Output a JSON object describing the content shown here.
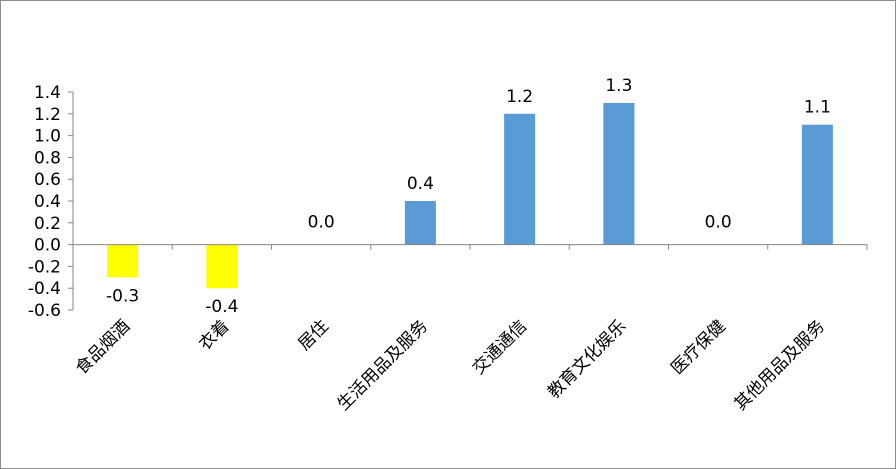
{
  "chart_data": {
    "type": "bar",
    "title": "",
    "xlabel": "",
    "ylabel": "",
    "categories": [
      "食品烟酒",
      "衣着",
      "居住",
      "生活用品及服务",
      "交通通信",
      "教育文化娱乐",
      "医疗保健",
      "其他用品及服务"
    ],
    "values": [
      -0.3,
      -0.4,
      0.0,
      0.4,
      1.2,
      1.3,
      0.0,
      1.1
    ],
    "value_labels": [
      "-0.3",
      "-0.4",
      "0.0",
      "0.4",
      "1.2",
      "1.3",
      "0.0",
      "1.1"
    ],
    "ylim": [
      -0.6,
      1.4
    ],
    "yticks": [
      "1.4",
      "1.2",
      "1.0",
      "0.8",
      "0.6",
      "0.4",
      "0.2",
      "0.0",
      "-0.2",
      "-0.4",
      "-0.6"
    ],
    "colors": {
      "positive": "#5B9BD5",
      "negative": "#FFFF00",
      "axis": "#868686"
    },
    "grid": false,
    "legend": "none"
  }
}
